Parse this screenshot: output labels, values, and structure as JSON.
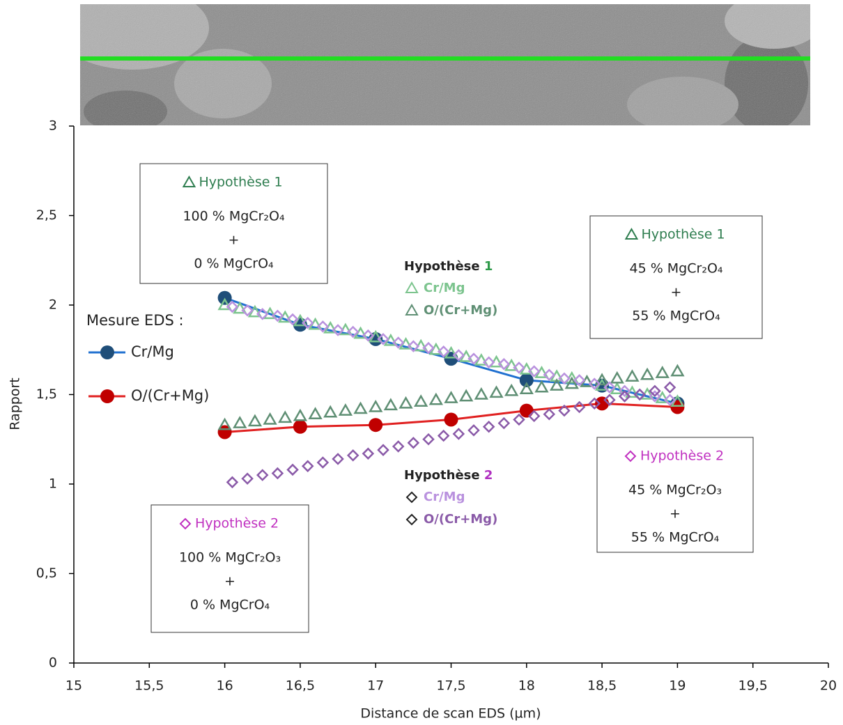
{
  "chart_data": {
    "type": "scatter",
    "xlabel": "Distance de scan EDS (µm)",
    "ylabel": "Rapport",
    "xlim": [
      15,
      20
    ],
    "ylim": [
      0,
      3
    ],
    "xticks": [
      15,
      {
        "value": 15.5,
        "label": "15,5"
      },
      16,
      {
        "value": 16.5,
        "label": "16,5"
      },
      17,
      {
        "value": 17.5,
        "label": "17,5"
      },
      18,
      {
        "value": 18.5,
        "label": "18,5"
      },
      19,
      {
        "value": 19.5,
        "label": "19,5"
      },
      20
    ],
    "yticks": [
      0,
      {
        "value": 0.5,
        "label": "0,5"
      },
      1,
      {
        "value": 1.5,
        "label": "1,5"
      },
      2,
      {
        "value": 2.5,
        "label": "2,5"
      },
      3
    ],
    "legend_groups": [
      {
        "title": "Mesure EDS :"
      },
      {
        "title": "Hypothèse",
        "number": "1",
        "number_color": "#2e9a4a"
      },
      {
        "title": "Hypothèse",
        "number": "2",
        "number_color": "#b030c0"
      }
    ],
    "series": [
      {
        "name": "Cr/Mg",
        "group": 0,
        "marker": "circle",
        "line": true,
        "color": "#1f4e79",
        "line_color": "#2070d0",
        "x": [
          16,
          16.5,
          17,
          17.5,
          18,
          18.5,
          19
        ],
        "values": [
          2.04,
          1.89,
          1.81,
          1.7,
          1.58,
          1.55,
          1.45
        ]
      },
      {
        "name": "O/(Cr+Mg)",
        "group": 0,
        "marker": "circle",
        "line": true,
        "color": "#c00000",
        "line_color": "#e02020",
        "x": [
          16,
          16.5,
          17,
          17.5,
          18,
          18.5,
          19
        ],
        "values": [
          1.29,
          1.32,
          1.33,
          1.36,
          1.41,
          1.45,
          1.43
        ]
      },
      {
        "name": "Cr/Mg",
        "group": 1,
        "marker": "triangle",
        "line": false,
        "color": "#7cc48e",
        "x": [
          16.0,
          16.1,
          16.2,
          16.3,
          16.4,
          16.5,
          16.6,
          16.7,
          16.8,
          16.9,
          17.0,
          17.1,
          17.2,
          17.3,
          17.4,
          17.5,
          17.6,
          17.7,
          17.8,
          17.9,
          18.0,
          18.1,
          18.2,
          18.3,
          18.4,
          18.5,
          18.6,
          18.7,
          18.8,
          18.9,
          19.0
        ],
        "values": [
          2.0,
          1.98,
          1.96,
          1.95,
          1.93,
          1.91,
          1.89,
          1.87,
          1.86,
          1.84,
          1.82,
          1.8,
          1.78,
          1.77,
          1.75,
          1.73,
          1.71,
          1.69,
          1.68,
          1.66,
          1.64,
          1.62,
          1.6,
          1.59,
          1.57,
          1.55,
          1.53,
          1.51,
          1.5,
          1.48,
          1.46
        ]
      },
      {
        "name": "O/(Cr+Mg)",
        "group": 1,
        "marker": "triangle",
        "line": false,
        "color": "#5f8f74",
        "x": [
          16.0,
          16.1,
          16.2,
          16.3,
          16.4,
          16.5,
          16.6,
          16.7,
          16.8,
          16.9,
          17.0,
          17.1,
          17.2,
          17.3,
          17.4,
          17.5,
          17.6,
          17.7,
          17.8,
          17.9,
          18.0,
          18.1,
          18.2,
          18.3,
          18.4,
          18.5,
          18.6,
          18.7,
          18.8,
          18.9,
          19.0
        ],
        "values": [
          1.33,
          1.34,
          1.35,
          1.36,
          1.37,
          1.38,
          1.39,
          1.4,
          1.41,
          1.42,
          1.43,
          1.44,
          1.45,
          1.46,
          1.47,
          1.48,
          1.49,
          1.5,
          1.51,
          1.52,
          1.53,
          1.54,
          1.55,
          1.56,
          1.57,
          1.58,
          1.59,
          1.6,
          1.61,
          1.62,
          1.63
        ]
      },
      {
        "name": "Cr/Mg",
        "group": 2,
        "marker": "diamond",
        "line": false,
        "color": "#b991de",
        "x": [
          16.05,
          16.15,
          16.25,
          16.35,
          16.45,
          16.55,
          16.65,
          16.75,
          16.85,
          16.95,
          17.05,
          17.15,
          17.25,
          17.35,
          17.45,
          17.55,
          17.65,
          17.75,
          17.85,
          17.95,
          18.05,
          18.15,
          18.25,
          18.35,
          18.45,
          18.55,
          18.65,
          18.75,
          18.85,
          18.95
        ],
        "values": [
          1.99,
          1.97,
          1.95,
          1.94,
          1.92,
          1.9,
          1.88,
          1.86,
          1.85,
          1.83,
          1.81,
          1.79,
          1.77,
          1.76,
          1.74,
          1.72,
          1.7,
          1.68,
          1.67,
          1.65,
          1.63,
          1.61,
          1.59,
          1.58,
          1.56,
          1.54,
          1.52,
          1.5,
          1.49,
          1.47
        ]
      },
      {
        "name": "O/(Cr+Mg)",
        "group": 2,
        "marker": "diamond",
        "line": false,
        "color": "#8a5aa8",
        "x": [
          16.05,
          16.15,
          16.25,
          16.35,
          16.45,
          16.55,
          16.65,
          16.75,
          16.85,
          16.95,
          17.05,
          17.15,
          17.25,
          17.35,
          17.45,
          17.55,
          17.65,
          17.75,
          17.85,
          17.95,
          18.05,
          18.15,
          18.25,
          18.35,
          18.45,
          18.55,
          18.65,
          18.75,
          18.85,
          18.95
        ],
        "values": [
          1.01,
          1.03,
          1.05,
          1.06,
          1.08,
          1.1,
          1.12,
          1.14,
          1.16,
          1.17,
          1.19,
          1.21,
          1.23,
          1.25,
          1.27,
          1.28,
          1.3,
          1.32,
          1.34,
          1.36,
          1.38,
          1.39,
          1.41,
          1.43,
          1.45,
          1.47,
          1.49,
          1.5,
          1.52,
          1.54
        ]
      }
    ],
    "annotations": [
      {
        "title": "Hypothèse 1",
        "marker": "triangle",
        "color": "#2e7d4f",
        "lines": [
          "100 % MgCr₂O₄",
          "+",
          "0  %  MgCrO₄"
        ]
      },
      {
        "title": "Hypothèse 1",
        "marker": "triangle",
        "color": "#2e7d4f",
        "lines": [
          "45 % MgCr₂O₄",
          "+",
          "55 %  MgCrO₄"
        ]
      },
      {
        "title": "Hypothèse 2",
        "marker": "diamond",
        "color": "#c030c0",
        "lines": [
          "45 % MgCr₂O₃",
          "+",
          "55 %  MgCrO₄"
        ]
      },
      {
        "title": "Hypothèse 2",
        "marker": "diamond",
        "color": "#c030c0",
        "lines": [
          "100 % MgCr₂O₃",
          "+",
          "0  %  MgCrO₄"
        ]
      }
    ]
  }
}
